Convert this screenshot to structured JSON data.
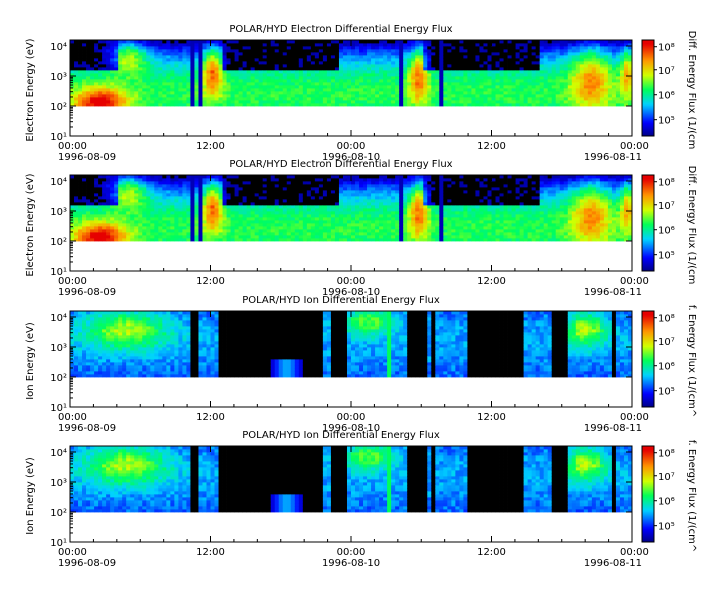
{
  "chart_data": [
    {
      "type": "heatmap",
      "title": "POLAR/HYD  Electron Differential Energy Flux",
      "ylabel": "Electron Energy (eV)",
      "colorbar_label": "Diff. Energy Flux (1/(cm",
      "y_ticks": [
        "10¹",
        "10²",
        "10³",
        "10⁴"
      ],
      "cb_ticks": [
        "10⁵",
        "10⁶",
        "10⁷",
        "10⁸"
      ],
      "x_ticks": [
        {
          "time": "00:00",
          "date": "1996-08-09"
        },
        {
          "time": "12:00",
          "date": ""
        },
        {
          "time": "00:00",
          "date": "1996-08-10"
        },
        {
          "time": "12:00",
          "date": ""
        },
        {
          "time": "00:00",
          "date": "1996-08-11"
        }
      ],
      "xlim_hours": [
        0,
        48
      ],
      "ylim_log10": [
        1,
        4.2
      ],
      "data_floor_log10": 2,
      "species": "electron"
    },
    {
      "type": "heatmap",
      "title": "POLAR/HYD  Electron Differential Energy Flux",
      "ylabel": "Electron Energy (eV)",
      "colorbar_label": "Diff. Energy Flux (1/(cm",
      "y_ticks": [
        "10¹",
        "10²",
        "10³",
        "10⁴"
      ],
      "cb_ticks": [
        "10⁵",
        "10⁶",
        "10⁷",
        "10⁸"
      ],
      "x_ticks": [
        {
          "time": "00:00",
          "date": "1996-08-09"
        },
        {
          "time": "12:00",
          "date": ""
        },
        {
          "time": "00:00",
          "date": "1996-08-10"
        },
        {
          "time": "12:00",
          "date": ""
        },
        {
          "time": "00:00",
          "date": "1996-08-11"
        }
      ],
      "xlim_hours": [
        0,
        48
      ],
      "ylim_log10": [
        1,
        4.2
      ],
      "data_floor_log10": 2,
      "species": "electron"
    },
    {
      "type": "heatmap",
      "title": "POLAR/HYD  Ion Differential Energy Flux",
      "ylabel": "Ion Energy (eV)",
      "colorbar_label": "f. Energy Flux (1/(cm^",
      "y_ticks": [
        "10¹",
        "10²",
        "10³",
        "10⁴"
      ],
      "cb_ticks": [
        "10⁵",
        "10⁶",
        "10⁷",
        "10⁸"
      ],
      "x_ticks": [
        {
          "time": "00:00",
          "date": "1996-08-09"
        },
        {
          "time": "12:00",
          "date": ""
        },
        {
          "time": "00:00",
          "date": "1996-08-10"
        },
        {
          "time": "12:00",
          "date": ""
        },
        {
          "time": "00:00",
          "date": "1996-08-11"
        }
      ],
      "xlim_hours": [
        0,
        48
      ],
      "ylim_log10": [
        1,
        4.2
      ],
      "data_floor_log10": 2,
      "species": "ion"
    },
    {
      "type": "heatmap",
      "title": "POLAR/HYD  Ion Differential Energy Flux",
      "ylabel": "Ion Energy (eV)",
      "colorbar_label": "f. Energy Flux (1/(cm^",
      "y_ticks": [
        "10¹",
        "10²",
        "10³",
        "10⁴"
      ],
      "cb_ticks": [
        "10⁵",
        "10⁶",
        "10⁷",
        "10⁸"
      ],
      "x_ticks": [
        {
          "time": "00:00",
          "date": "1996-08-09"
        },
        {
          "time": "12:00",
          "date": ""
        },
        {
          "time": "00:00",
          "date": "1996-08-10"
        },
        {
          "time": "12:00",
          "date": ""
        },
        {
          "time": "00:00",
          "date": "1996-08-11"
        }
      ],
      "xlim_hours": [
        0,
        48
      ],
      "ylim_log10": [
        1,
        4.2
      ],
      "data_floor_log10": 2,
      "species": "ion"
    }
  ]
}
